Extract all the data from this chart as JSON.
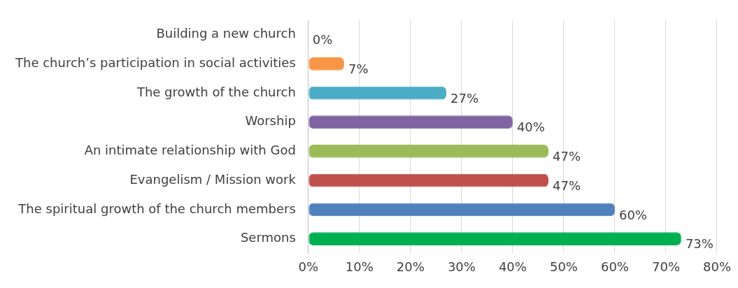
{
  "chart_data": {
    "type": "bar",
    "orientation": "horizontal",
    "categories": [
      "Building a new church",
      "The church’s participation in social activities",
      "The growth of the church",
      "Worship",
      "An intimate relationship with God",
      "Evangelism / Mission work",
      "The spiritual growth of the church members",
      "Sermons"
    ],
    "values": [
      0,
      7,
      27,
      40,
      47,
      47,
      60,
      73
    ],
    "colors": [
      "#1f4e79",
      "#f79646",
      "#4bacc6",
      "#8064a2",
      "#9bbb59",
      "#c0504d",
      "#4f81bd",
      "#00b050"
    ],
    "value_labels": [
      "0%",
      "7%",
      "27%",
      "40%",
      "47%",
      "47%",
      "60%",
      "73%"
    ],
    "xlim": [
      0,
      80
    ],
    "xticks": [
      {
        "value": 0,
        "label": "0%"
      },
      {
        "value": 10,
        "label": "10%"
      },
      {
        "value": 20,
        "label": "20%"
      },
      {
        "value": 30,
        "label": "30%"
      },
      {
        "value": 40,
        "label": "40%"
      },
      {
        "value": 50,
        "label": "50%"
      },
      {
        "value": 60,
        "label": "60%"
      },
      {
        "value": 70,
        "label": "70%"
      },
      {
        "value": 80,
        "label": "80%"
      }
    ],
    "grid": "x"
  }
}
